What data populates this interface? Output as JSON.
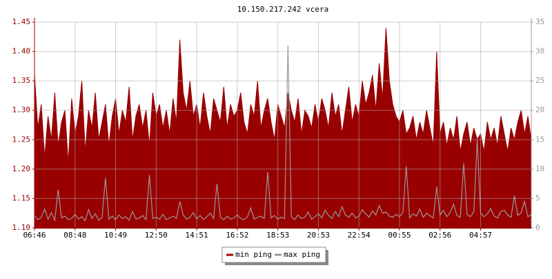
{
  "chart_data": {
    "type": "line",
    "title": "10.150.217.242 vcera",
    "categories": [
      "06:46",
      null,
      null,
      null,
      null,
      null,
      null,
      null,
      null,
      null,
      null,
      null,
      "08:48",
      null,
      null,
      null,
      null,
      null,
      null,
      null,
      null,
      null,
      null,
      null,
      "10:49",
      null,
      null,
      null,
      null,
      null,
      null,
      null,
      null,
      null,
      null,
      null,
      "12:50",
      null,
      null,
      null,
      null,
      null,
      null,
      null,
      null,
      null,
      null,
      null,
      "14:51",
      null,
      null,
      null,
      null,
      null,
      null,
      null,
      null,
      null,
      null,
      null,
      "16:52",
      null,
      null,
      null,
      null,
      null,
      null,
      null,
      null,
      null,
      null,
      null,
      "18:53",
      null,
      null,
      null,
      null,
      null,
      null,
      null,
      null,
      null,
      null,
      null,
      "20:53",
      null,
      null,
      null,
      null,
      null,
      null,
      null,
      null,
      null,
      null,
      null,
      "22:54",
      null,
      null,
      null,
      null,
      null,
      null,
      null,
      null,
      null,
      null,
      null,
      "00:55",
      null,
      null,
      null,
      null,
      null,
      null,
      null,
      null,
      null,
      null,
      null,
      "02:56",
      null,
      null,
      null,
      null,
      null,
      null,
      null,
      null,
      null,
      null,
      null,
      "04:57",
      null,
      null,
      null,
      null,
      null,
      null,
      null,
      null,
      null,
      null,
      null,
      null,
      null,
      null,
      null
    ],
    "series": [
      {
        "name": "min ping",
        "color": "#990000",
        "axis": "y",
        "fill": true,
        "values": [
          1.36,
          1.27,
          1.31,
          1.22,
          1.29,
          1.25,
          1.33,
          1.24,
          1.28,
          1.3,
          1.21,
          1.32,
          1.26,
          1.29,
          1.35,
          1.23,
          1.3,
          1.27,
          1.33,
          1.25,
          1.28,
          1.31,
          1.24,
          1.29,
          1.32,
          1.26,
          1.3,
          1.28,
          1.34,
          1.25,
          1.29,
          1.31,
          1.27,
          1.3,
          1.24,
          1.33,
          1.29,
          1.31,
          1.27,
          1.3,
          1.26,
          1.32,
          1.28,
          1.42,
          1.33,
          1.3,
          1.35,
          1.29,
          1.31,
          1.27,
          1.33,
          1.29,
          1.26,
          1.32,
          1.3,
          1.28,
          1.34,
          1.27,
          1.31,
          1.29,
          1.3,
          1.33,
          1.28,
          1.26,
          1.31,
          1.29,
          1.35,
          1.27,
          1.3,
          1.32,
          1.28,
          1.25,
          1.31,
          1.29,
          1.27,
          1.33,
          1.3,
          1.28,
          1.32,
          1.26,
          1.3,
          1.29,
          1.27,
          1.31,
          1.28,
          1.32,
          1.3,
          1.27,
          1.33,
          1.29,
          1.31,
          1.26,
          1.3,
          1.34,
          1.28,
          1.31,
          1.29,
          1.35,
          1.31,
          1.33,
          1.36,
          1.3,
          1.38,
          1.32,
          1.44,
          1.35,
          1.31,
          1.29,
          1.28,
          1.3,
          1.26,
          1.27,
          1.29,
          1.25,
          1.28,
          1.26,
          1.3,
          1.27,
          1.24,
          1.4,
          1.26,
          1.28,
          1.24,
          1.27,
          1.25,
          1.29,
          1.23,
          1.26,
          1.28,
          1.24,
          1.27,
          1.25,
          1.26,
          1.23,
          1.28,
          1.25,
          1.27,
          1.24,
          1.29,
          1.26,
          1.23,
          1.27,
          1.25,
          1.28,
          1.3,
          1.26,
          1.29,
          1.25
        ]
      },
      {
        "name": "max ping",
        "color": "#999999",
        "axis": "y2",
        "fill": false,
        "values": [
          2.1,
          1.4,
          1.8,
          3.2,
          1.5,
          2.6,
          1.3,
          6.5,
          1.7,
          2.0,
          1.4,
          1.6,
          2.3,
          1.5,
          1.9,
          1.2,
          3.1,
          1.6,
          2.4,
          1.3,
          1.8,
          8.5,
          1.5,
          2.0,
          1.4,
          2.2,
          1.6,
          1.9,
          1.3,
          2.8,
          1.5,
          1.7,
          2.1,
          1.4,
          9.0,
          1.6,
          1.8,
          1.5,
          2.3,
          1.4,
          1.7,
          2.0,
          1.6,
          4.5,
          2.2,
          1.5,
          1.8,
          2.6,
          1.5,
          2.1,
          1.4,
          1.9,
          2.5,
          1.6,
          7.5,
          1.8,
          1.4,
          2.0,
          1.5,
          1.7,
          2.2,
          1.6,
          1.4,
          1.9,
          3.4,
          1.5,
          1.8,
          2.0,
          1.6,
          9.5,
          1.7,
          2.1,
          1.5,
          1.8,
          1.6,
          31.0,
          1.9,
          1.4,
          2.2,
          1.6,
          1.8,
          2.7,
          1.5,
          1.9,
          2.4,
          1.7,
          3.0,
          2.1,
          1.6,
          2.8,
          1.9,
          3.6,
          2.2,
          1.8,
          2.5,
          1.7,
          2.0,
          3.1,
          2.4,
          1.8,
          2.9,
          2.2,
          3.8,
          2.5,
          2.7,
          2.0,
          1.8,
          2.3,
          1.9,
          2.6,
          10.5,
          1.7,
          2.4,
          2.0,
          3.2,
          1.8,
          2.5,
          2.1,
          1.7,
          7.0,
          2.2,
          3.0,
          1.9,
          2.6,
          4.0,
          2.1,
          1.8,
          11.0,
          2.3,
          1.9,
          2.7,
          15.0,
          2.5,
          1.9,
          2.4,
          3.3,
          2.0,
          1.7,
          2.8,
          3.0,
          2.2,
          1.8,
          5.5,
          2.1,
          2.6,
          4.5,
          1.9,
          2.3
        ]
      }
    ],
    "ylim": [
      1.1,
      1.45
    ],
    "yticks": [
      {
        "value": 1.1,
        "label": "1.10"
      },
      1.15,
      {
        "value": 1.2,
        "label": "1.20"
      },
      1.25,
      {
        "value": 1.3,
        "label": "1.30"
      },
      1.35,
      {
        "value": 1.4,
        "label": "1.40"
      },
      1.45
    ],
    "y2lim": [
      0,
      35
    ],
    "y2ticks": [
      0,
      5,
      10,
      15,
      20,
      25,
      30,
      35
    ],
    "grid": true
  }
}
